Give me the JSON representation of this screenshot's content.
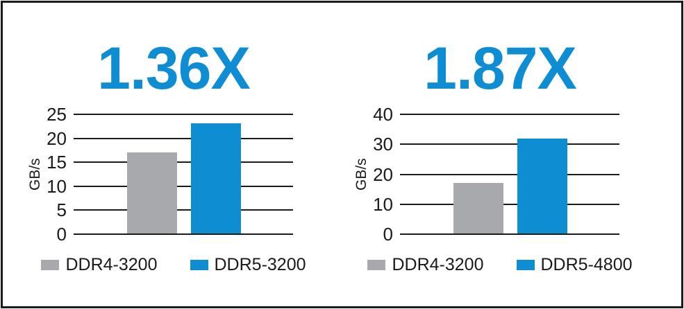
{
  "colors": {
    "accent_blue": "#0E8DD3",
    "bar_gray": "#A7A9AC",
    "grid_line": "#1A1A1A",
    "frame_border": "#1B1B1B",
    "background": "#FFFFFF",
    "text": "#1A1A1A"
  },
  "chart_data": [
    {
      "type": "bar",
      "title": "1.36X",
      "xlabel": "",
      "ylabel": "GB/s",
      "ylim": [
        0,
        25
      ],
      "yticks": [
        0,
        5,
        10,
        15,
        20,
        25
      ],
      "grid": "horizontal",
      "legend_position": "bottom",
      "categories": [
        "DDR4-3200",
        "DDR5-3200"
      ],
      "series": [
        {
          "name": "DDR4-3200",
          "value": 17,
          "color": "#A7A9AC"
        },
        {
          "name": "DDR5-3200",
          "value": 23.1,
          "color": "#0E8DD3"
        }
      ]
    },
    {
      "type": "bar",
      "title": "1.87X",
      "xlabel": "",
      "ylabel": "GB/s",
      "ylim": [
        0,
        40
      ],
      "yticks": [
        0,
        10,
        20,
        30,
        40
      ],
      "grid": "horizontal",
      "legend_position": "bottom",
      "categories": [
        "DDR4-3200",
        "DDR5-4800"
      ],
      "series": [
        {
          "name": "DDR4-3200",
          "value": 17,
          "color": "#A7A9AC"
        },
        {
          "name": "DDR5-4800",
          "value": 31.8,
          "color": "#0E8DD3"
        }
      ]
    }
  ]
}
